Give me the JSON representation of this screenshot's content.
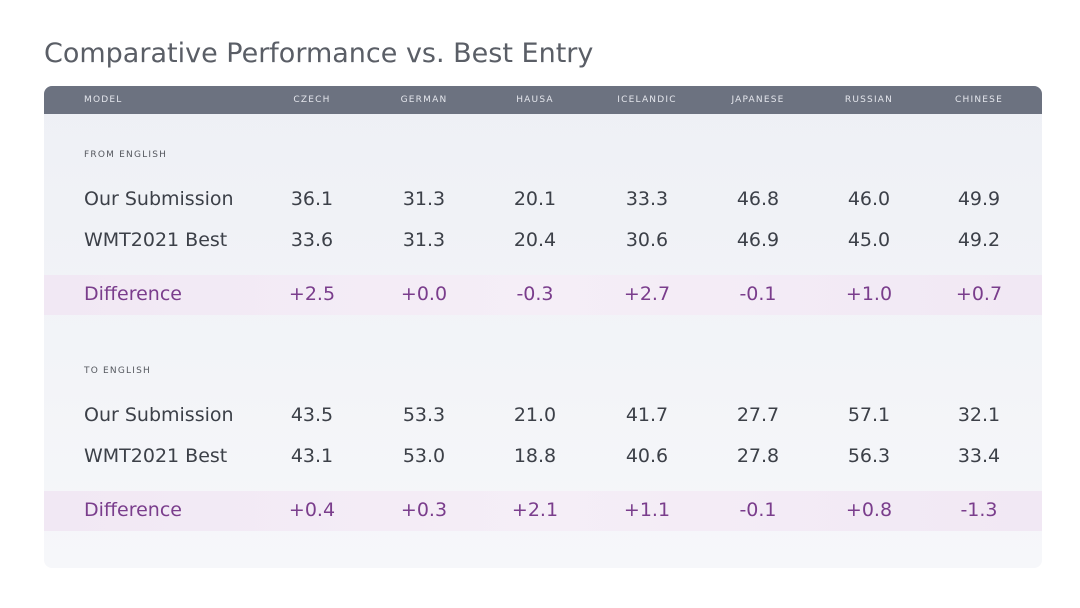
{
  "header": {
    "title": "Comparative Performance vs. Best Entry"
  },
  "table": {
    "columns": [
      "MODEL",
      "CZECH",
      "GERMAN",
      "HAUSA",
      "ICELANDIC",
      "JAPANESE",
      "RUSSIAN",
      "CHINESE"
    ],
    "sections": [
      {
        "label": "FROM ENGLISH",
        "rows": [
          [
            "Our Submission",
            "36.1",
            "31.3",
            "20.1",
            "33.3",
            "46.8",
            "46.0",
            "49.9"
          ],
          [
            "WMT2021 Best",
            "33.6",
            "31.3",
            "20.4",
            "30.6",
            "46.9",
            "45.0",
            "49.2"
          ],
          [
            "Difference",
            "+2.5",
            "+0.0",
            "-0.3",
            "+2.7",
            "-0.1",
            "+1.0",
            "+0.7"
          ]
        ]
      },
      {
        "label": "TO ENGLISH",
        "rows": [
          [
            "Our Submission",
            "43.5",
            "53.3",
            "21.0",
            "41.7",
            "27.7",
            "57.1",
            "32.1"
          ],
          [
            "WMT2021 Best",
            "43.1",
            "53.0",
            "18.8",
            "40.6",
            "27.8",
            "56.3",
            "33.4"
          ],
          [
            "Difference",
            "+0.4",
            "+0.3",
            "+2.1",
            "+1.1",
            "-0.1",
            "+0.8",
            "-1.3"
          ]
        ]
      }
    ]
  }
}
